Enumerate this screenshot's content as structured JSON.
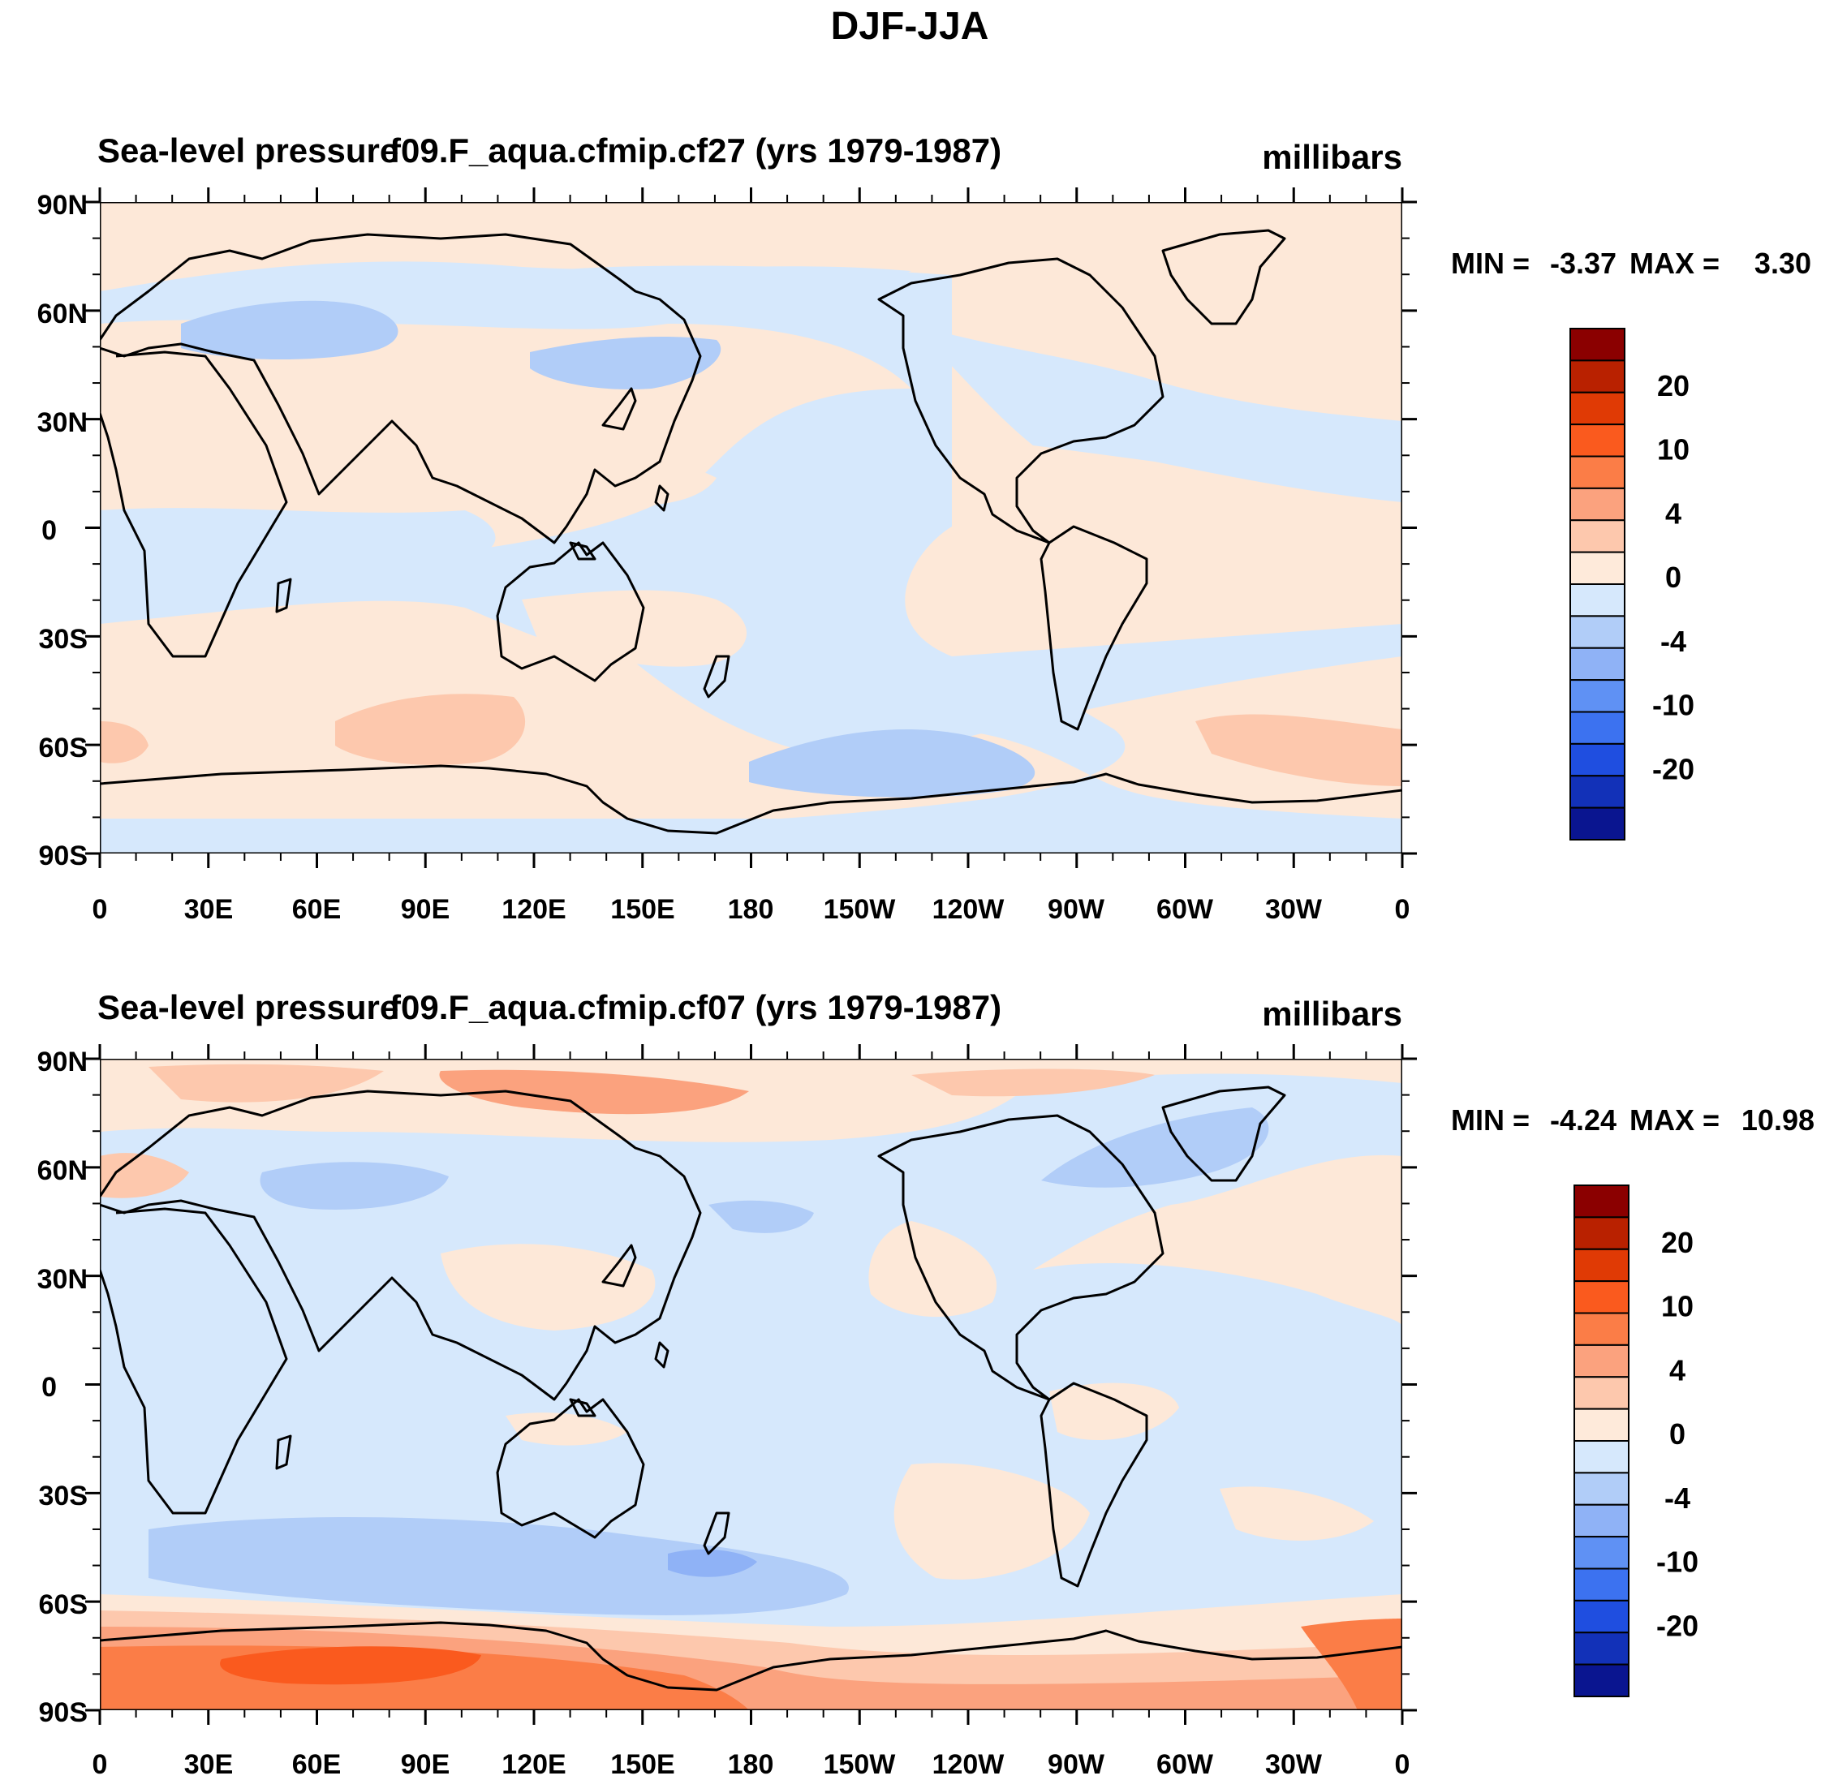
{
  "figure": {
    "title": "DJF-JJA"
  },
  "panels": [
    {
      "variable": "Sea-level pressure",
      "case": "f09.F_aqua.cfmip.cf27 (yrs 1979-1987)",
      "units": "millibars",
      "min_label": "MIN =",
      "min_value": "-3.37",
      "max_label": "MAX =",
      "max_value": "3.30"
    },
    {
      "variable": "Sea-level pressure",
      "case": "f09.F_aqua.cfmip.cf07 (yrs 1979-1987)",
      "units": "millibars",
      "min_label": "MIN =",
      "min_value": "-4.24",
      "max_label": "MAX =",
      "max_value": "10.98"
    }
  ],
  "axes": {
    "lat_ticks": [
      "90N",
      "60N",
      "30N",
      "0",
      "30S",
      "60S",
      "90S"
    ],
    "lon_ticks": [
      "0",
      "30E",
      "60E",
      "90E",
      "120E",
      "150E",
      "180",
      "150W",
      "120W",
      "90W",
      "60W",
      "30W",
      "0"
    ]
  },
  "colorbar": {
    "labels": [
      "20",
      "10",
      "4",
      "0",
      "-4",
      "-10",
      "-20"
    ],
    "colors": [
      "#8b0000",
      "#b92100",
      "#e03a05",
      "#fa5a1e",
      "#fb7d47",
      "#fba27e",
      "#fdc8ad",
      "#feeada",
      "#d6e8fc",
      "#b1cdf8",
      "#8fb2f6",
      "#5f91f4",
      "#3c72f0",
      "#1f4ee0",
      "#1231b8",
      "#0a1590"
    ]
  },
  "colors": {
    "land_outline": "#000000",
    "neutral_pos": "#fde8d8",
    "neutral_neg": "#d6e8fc"
  }
}
